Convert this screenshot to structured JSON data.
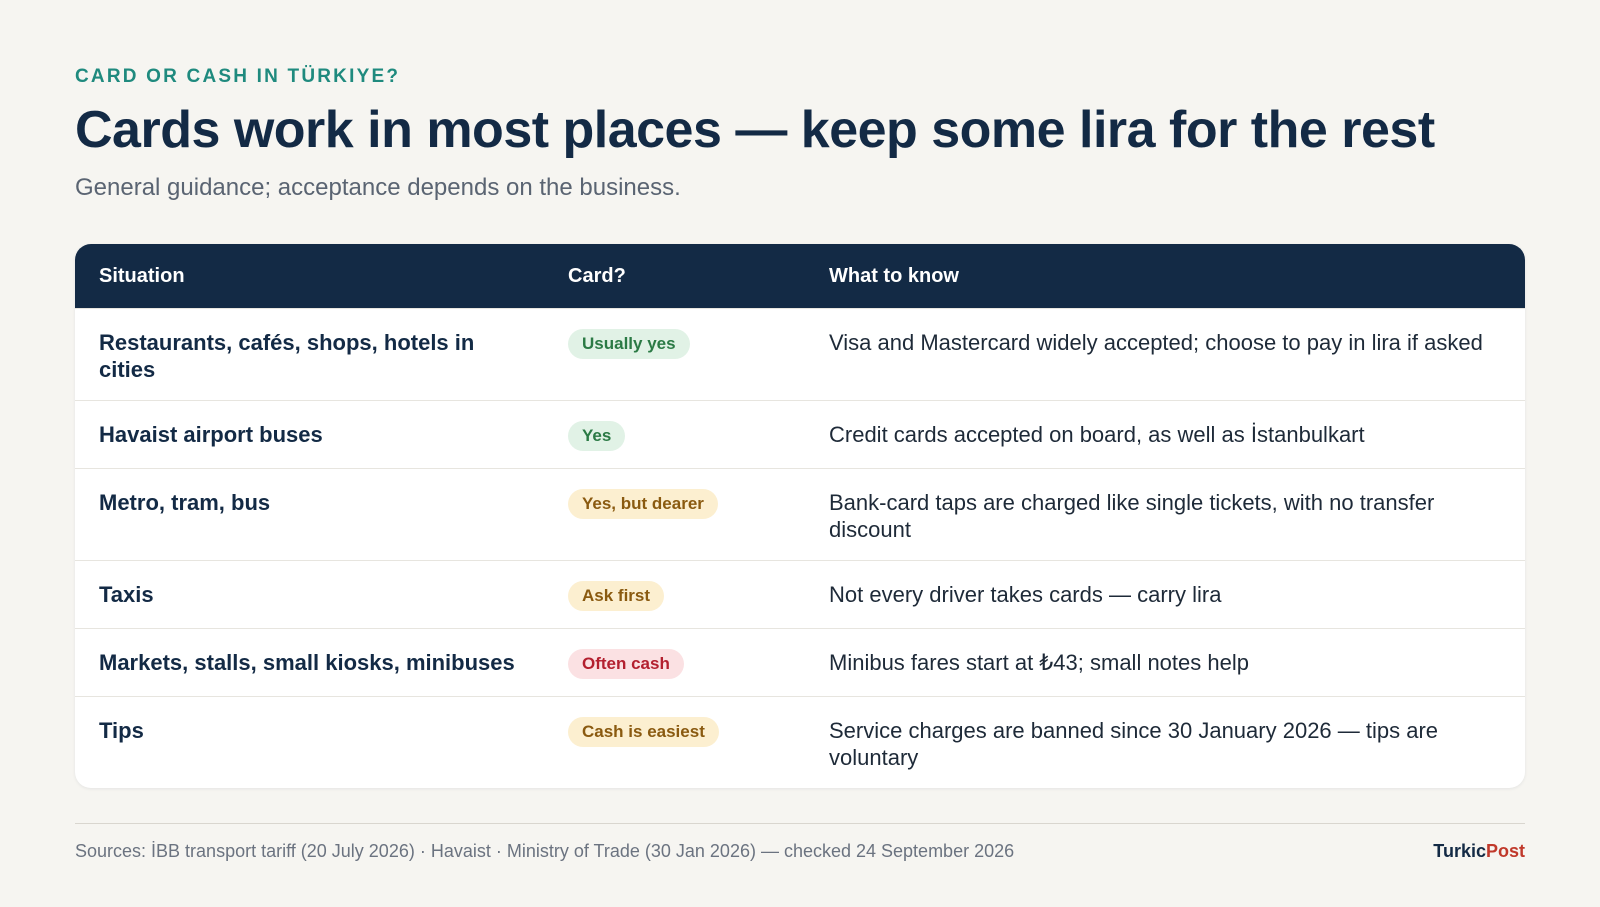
{
  "header": {
    "kicker": "CARD OR CASH IN TÜRKIYE?",
    "title": "Cards work in most places — keep some lira for the rest",
    "subtitle": "General guidance; acceptance depends on the business."
  },
  "table": {
    "columns": [
      "Situation",
      "Card?",
      "What to know"
    ],
    "rows": [
      {
        "situation": "Restaurants, cafés, shops, hotels in cities",
        "card": "Usually yes",
        "status": "green",
        "know": "Visa and Mastercard widely accepted; choose to pay in lira if asked"
      },
      {
        "situation": "Havaist airport buses",
        "card": "Yes",
        "status": "green",
        "know": "Credit cards accepted on board, as well as İstanbulkart"
      },
      {
        "situation": "Metro, tram, bus",
        "card": "Yes, but dearer",
        "status": "amber",
        "know": "Bank-card taps are charged like single tickets, with no transfer discount"
      },
      {
        "situation": "Taxis",
        "card": "Ask first",
        "status": "amber",
        "know": "Not every driver takes cards — carry lira"
      },
      {
        "situation": "Markets, stalls, small kiosks, minibuses",
        "card": "Often cash",
        "status": "red",
        "know": "Minibus fares start at ₺43; small notes help"
      },
      {
        "situation": "Tips",
        "card": "Cash is easiest",
        "status": "amber",
        "know": "Service charges are banned since 30 January 2026 — tips are voluntary"
      }
    ]
  },
  "footer": {
    "sources": "Sources: İBB transport tariff (20 July 2026) · Havaist · Ministry of Trade (30 Jan 2026) — checked 24 September 2026",
    "brand_part1": "Turkic",
    "brand_part2": "Post"
  },
  "colors": {
    "navy": "#132a45",
    "teal": "#1f8a7e",
    "background": "#f6f5f1",
    "green_pill": "#e1f2e6",
    "amber_pill": "#fcefd0",
    "red_pill": "#fbe1e3",
    "brand_red": "#c0392b"
  }
}
